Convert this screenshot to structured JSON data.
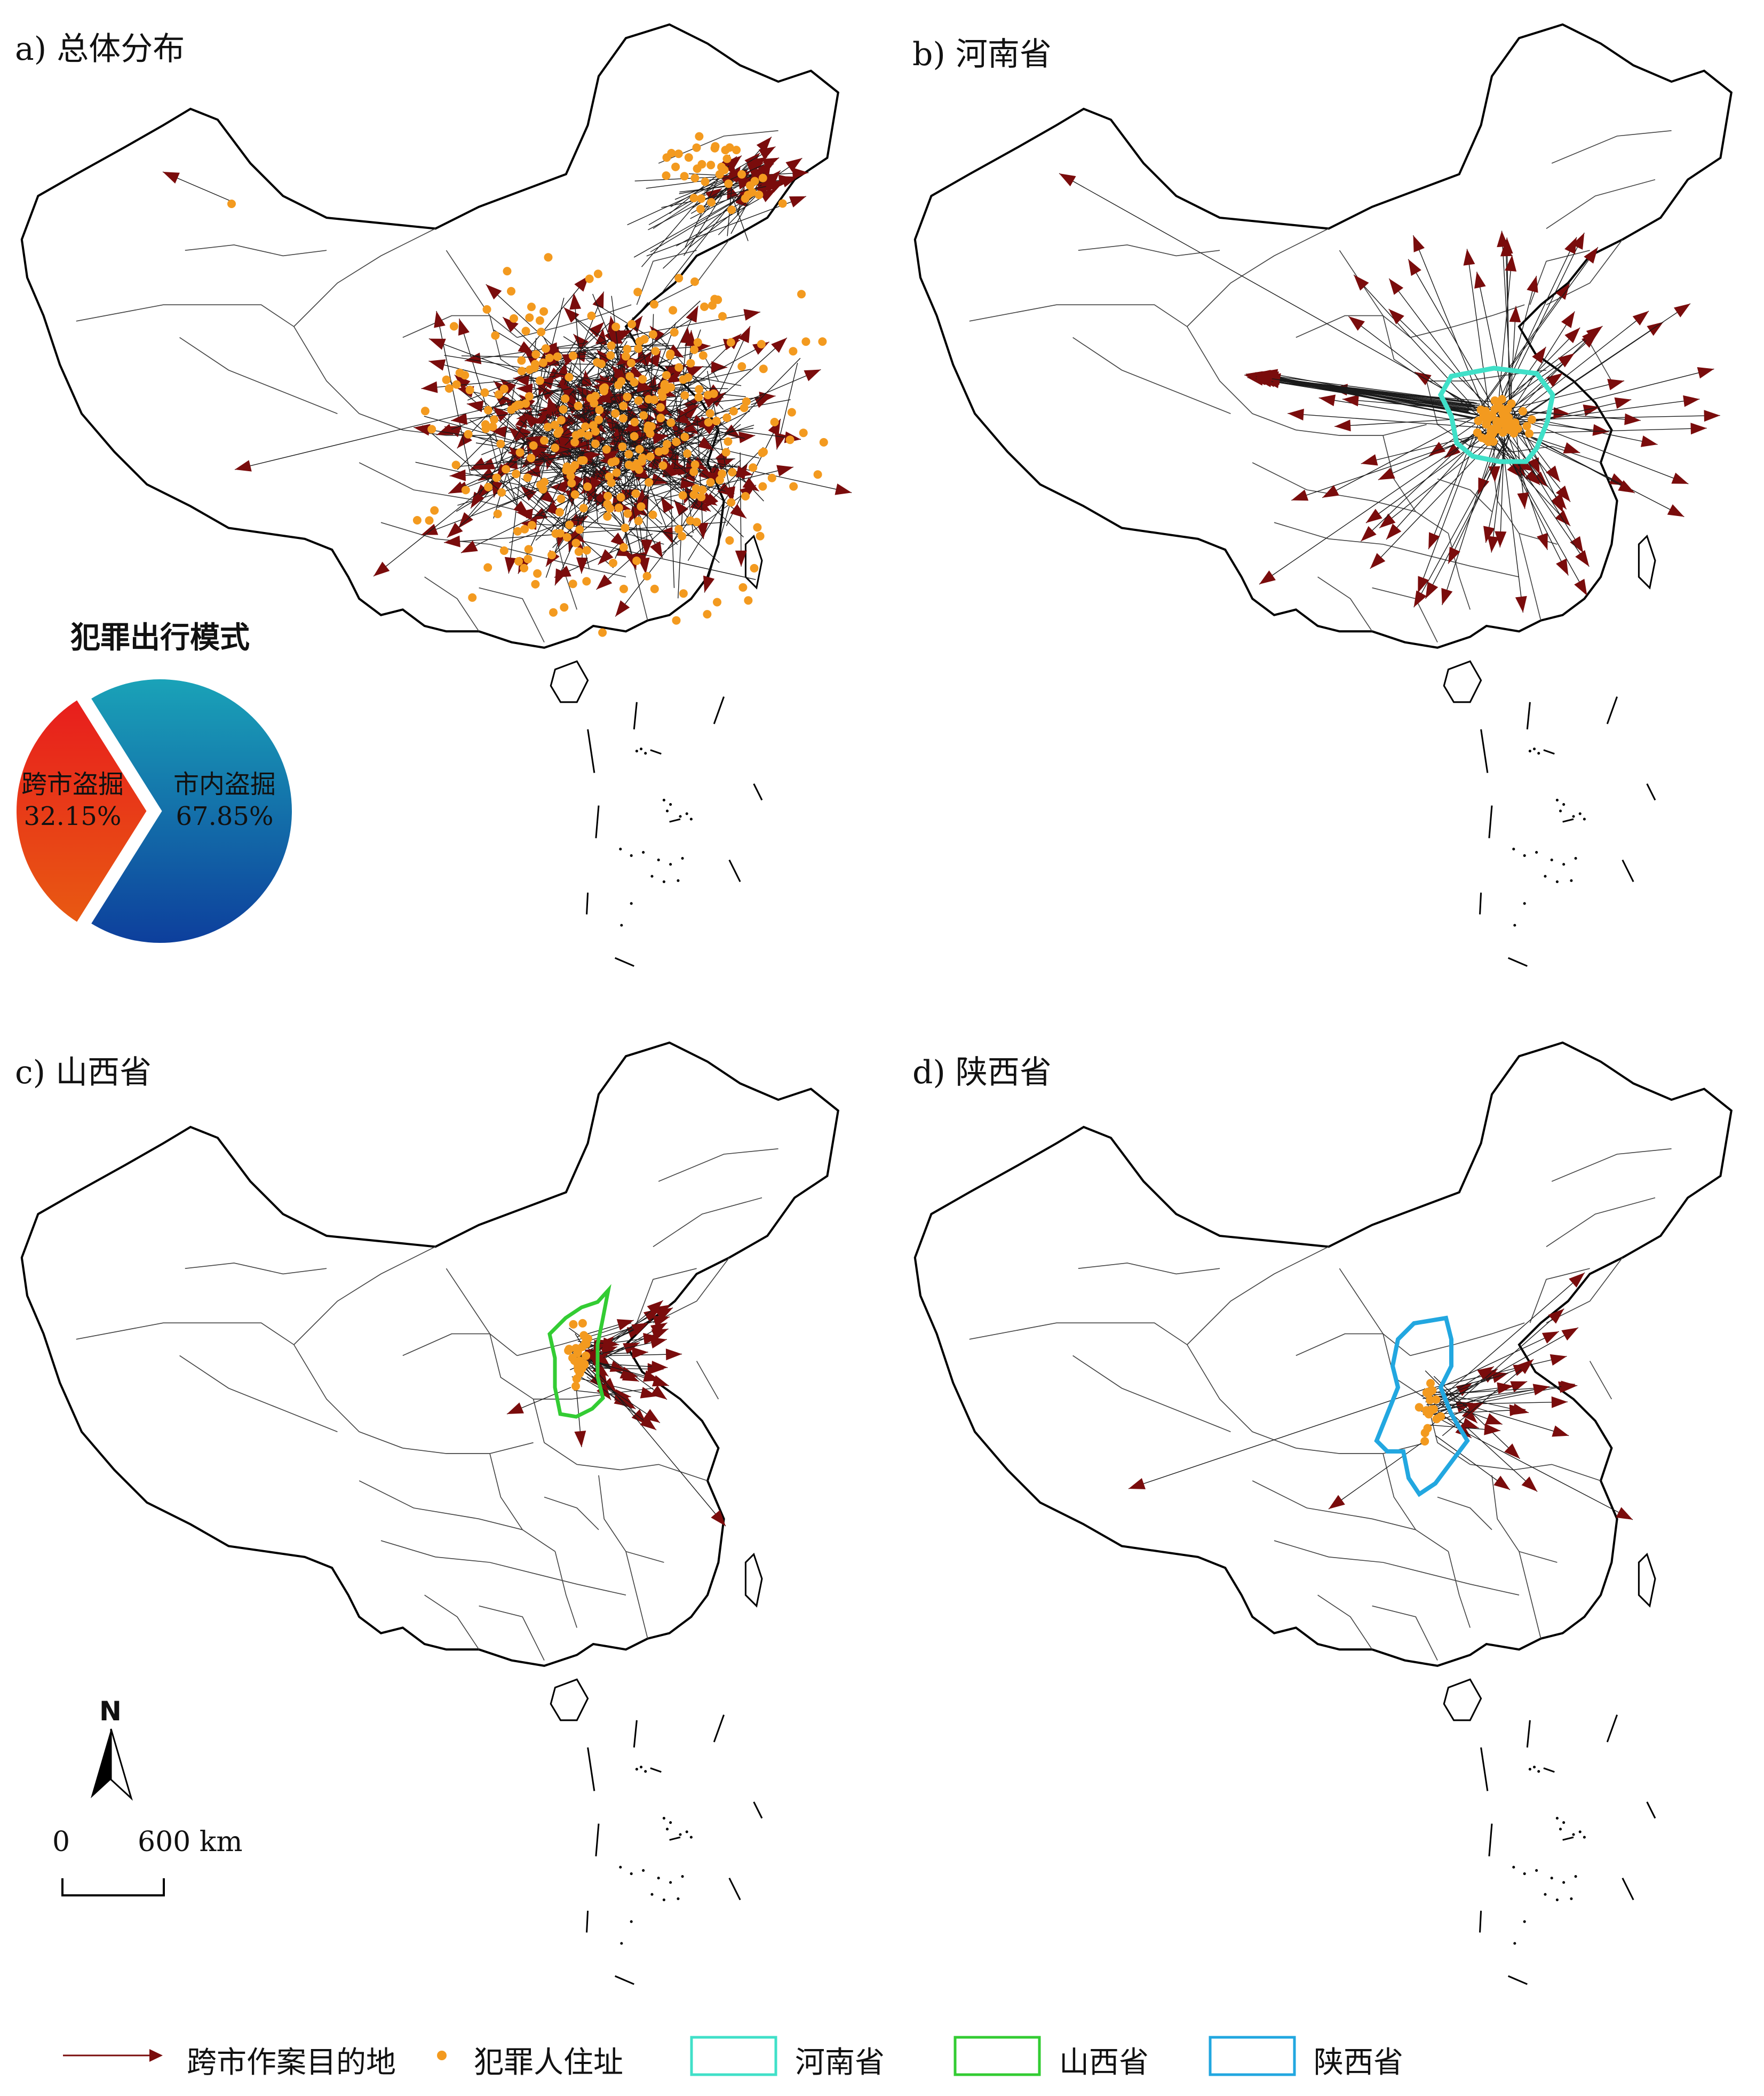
{
  "panels": [
    {
      "id": "a",
      "title": "a) 总体分布"
    },
    {
      "id": "b",
      "title": "b) 河南省"
    },
    {
      "id": "c",
      "title": "c) 山西省"
    },
    {
      "id": "d",
      "title": "d) 陕西省"
    }
  ],
  "pie": {
    "title": "犯罪出行模式",
    "slices": [
      {
        "label": "跨市盗掘",
        "value": "32.15%",
        "percent": 32.15
      },
      {
        "label": "市内盗掘",
        "value": "67.85%",
        "percent": 67.85
      }
    ]
  },
  "north_arrow": {
    "label": "N"
  },
  "scale_bar": {
    "start_label": "0",
    "end_label": "600 km"
  },
  "legend": {
    "items": [
      {
        "label": "跨市作案目的地",
        "symbol": "arrow"
      },
      {
        "label": "犯罪人住址",
        "symbol": "dot"
      },
      {
        "label": "河南省",
        "symbol": "outline"
      },
      {
        "label": "山西省",
        "symbol": "outline"
      },
      {
        "label": "陕西省",
        "symbol": "outline"
      }
    ]
  },
  "colors": {
    "arrow": "#7a0c0c",
    "residence": "#f39a1f",
    "henan": "#40e0c8",
    "shanxi": "#33cc33",
    "shaanxi": "#22a7e0",
    "pie_cross_city_top": "#e81d1d",
    "pie_cross_city_bottom": "#e85a12",
    "pie_within_city_top": "#1aa3b8",
    "pie_within_city_bottom": "#0d3e9c"
  }
}
